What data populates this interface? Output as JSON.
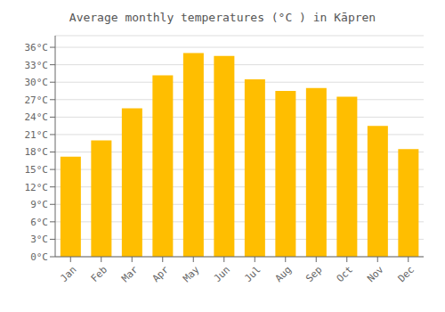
{
  "chart_data": {
    "type": "bar",
    "title": "Average monthly temperatures (°C ) in Kāpren",
    "categories": [
      "Jan",
      "Feb",
      "Mar",
      "Apr",
      "May",
      "Jun",
      "Jul",
      "Aug",
      "Sep",
      "Oct",
      "Nov",
      "Dec"
    ],
    "values": [
      17.2,
      20.0,
      25.5,
      31.2,
      35.0,
      34.5,
      30.5,
      28.5,
      29.0,
      27.5,
      22.5,
      18.5
    ],
    "color": "#FFBE00",
    "ylim": [
      0,
      38
    ],
    "yticks": [
      {
        "value": 0,
        "label": "0°C"
      },
      {
        "value": 3,
        "label": "3°C"
      },
      {
        "value": 6,
        "label": "6°C"
      },
      {
        "value": 9,
        "label": "9°C"
      },
      {
        "value": 12,
        "label": "12°C"
      },
      {
        "value": 15,
        "label": "15°C"
      },
      {
        "value": 18,
        "label": "18°C"
      },
      {
        "value": 21,
        "label": "21°C"
      },
      {
        "value": 24,
        "label": "24°C"
      },
      {
        "value": 27,
        "label": "27°C"
      },
      {
        "value": 30,
        "label": "30°C"
      },
      {
        "value": 33,
        "label": "33°C"
      },
      {
        "value": 36,
        "label": "36°C"
      }
    ],
    "grid": true
  }
}
